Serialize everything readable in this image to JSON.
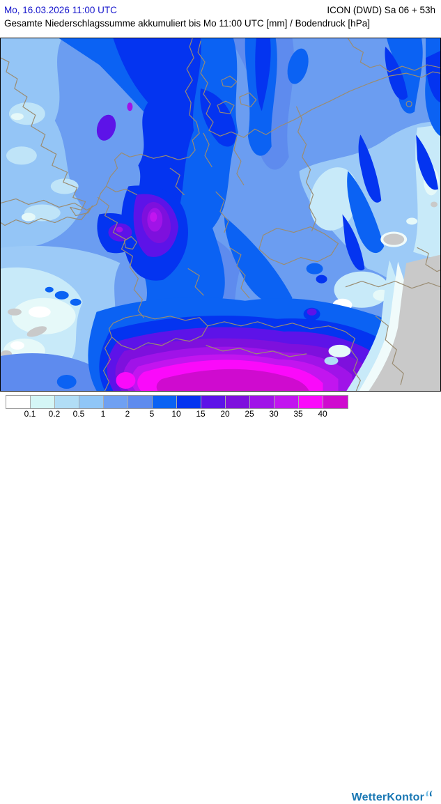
{
  "header": {
    "datetime": "Mo, 16.03.2026 11:00 UTC",
    "datetime_color": "#1515cc",
    "model_run": "ICON (DWD) Sa 06 + 53h",
    "subtitle": "Gesamte Niederschlagssumme akkumuliert bis Mo 11:00 UTC [mm] / Bodendruck [hPa]"
  },
  "map": {
    "kind": "precipitation-accumulation-map",
    "region": "Central Europe",
    "border_color": "#9a8c72",
    "dry_area_color": "#c9c9c9"
  },
  "legend": {
    "unit": "mm",
    "tick_labels": [
      "0.1",
      "0.2",
      "0.5",
      "1",
      "2",
      "5",
      "10",
      "15",
      "20",
      "25",
      "30",
      "35",
      "40"
    ],
    "colors": [
      "#ffffff",
      "#d4f6f6",
      "#b1ddf6",
      "#90c6f7",
      "#6fa0f2",
      "#5e8bee",
      "#0b62f3",
      "#0434f0",
      "#5d13e8",
      "#7e10dd",
      "#a013e8",
      "#c215ef",
      "#fa0afa",
      "#cf0bcf"
    ]
  },
  "branding": {
    "logo_text": "WetterKontor",
    "logo_color": "#1a78b4",
    "logo_icon": "swoosh-icon"
  }
}
